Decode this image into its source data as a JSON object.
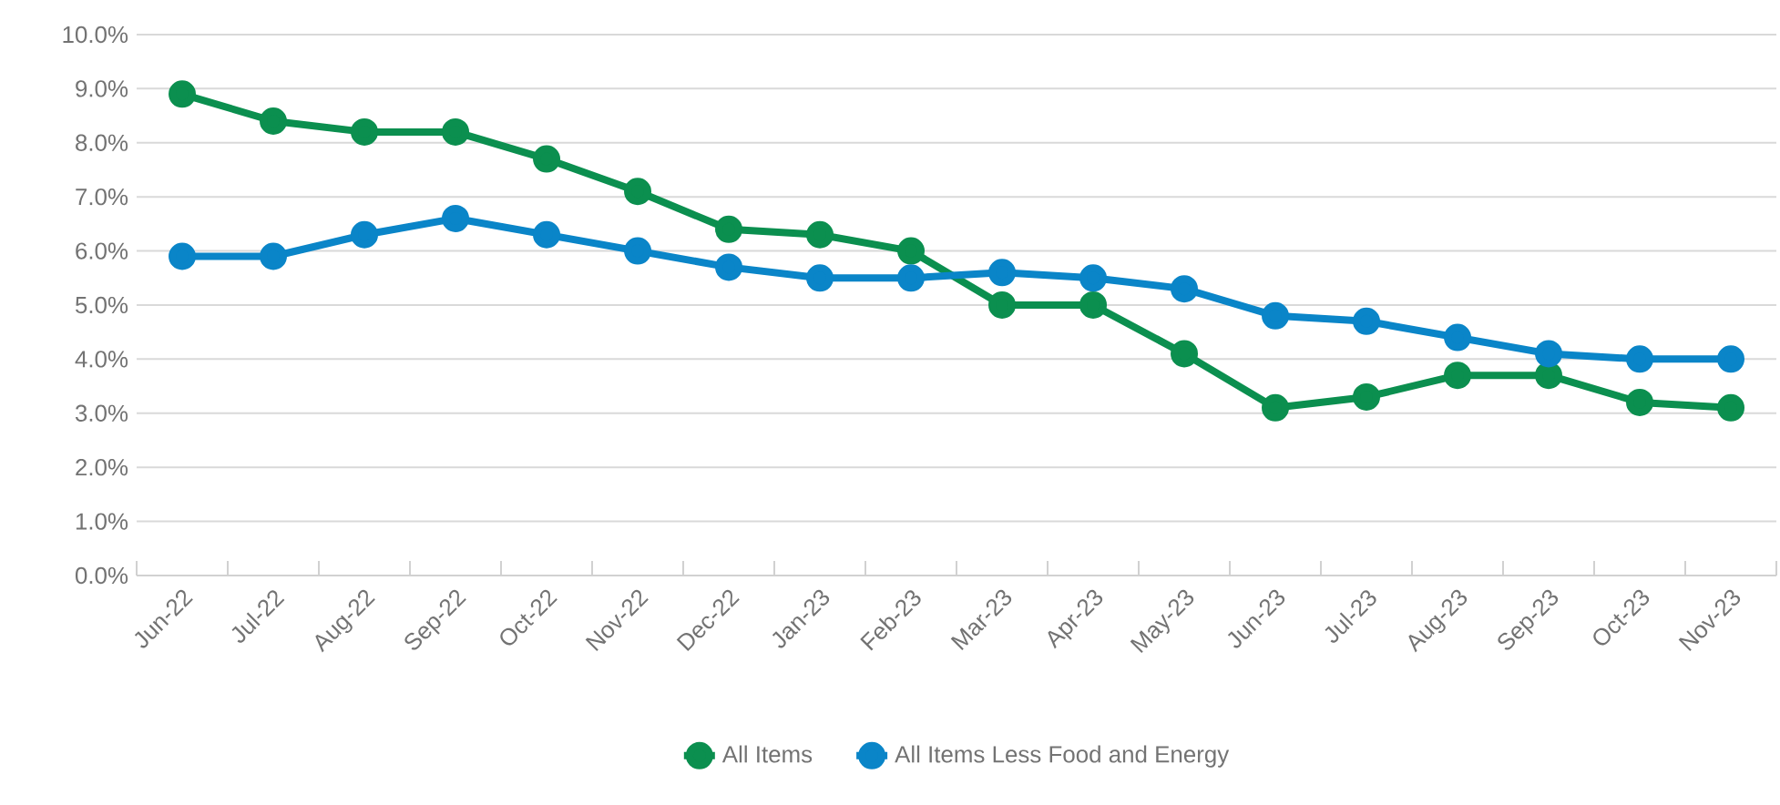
{
  "chart_data": {
    "type": "line",
    "categories": [
      "Jun-22",
      "Jul-22",
      "Aug-22",
      "Sep-22",
      "Oct-22",
      "Nov-22",
      "Dec-22",
      "Jan-23",
      "Feb-23",
      "Mar-23",
      "Apr-23",
      "May-23",
      "Jun-23",
      "Jul-23",
      "Aug-23",
      "Sep-23",
      "Oct-23",
      "Nov-23"
    ],
    "series": [
      {
        "name": "All Items",
        "color": "#0b8f4f",
        "values": [
          8.9,
          8.4,
          8.2,
          8.2,
          7.7,
          7.1,
          6.4,
          6.3,
          6.0,
          5.0,
          5.0,
          4.1,
          3.1,
          3.3,
          3.7,
          3.7,
          3.2,
          3.1
        ]
      },
      {
        "name": "All Items Less Food and Energy",
        "color": "#0a85c8",
        "values": [
          5.9,
          5.9,
          6.3,
          6.6,
          6.3,
          6.0,
          5.7,
          5.5,
          5.5,
          5.6,
          5.5,
          5.3,
          4.8,
          4.7,
          4.4,
          4.1,
          4.0,
          4.0
        ]
      }
    ],
    "ylim": [
      0,
      10
    ],
    "yticks": [
      {
        "value": 0,
        "label": "0.0%"
      },
      {
        "value": 1,
        "label": "1.0%"
      },
      {
        "value": 2,
        "label": "2.0%"
      },
      {
        "value": 3,
        "label": "3.0%"
      },
      {
        "value": 4,
        "label": "4.0%"
      },
      {
        "value": 5,
        "label": "5.0%"
      },
      {
        "value": 6,
        "label": "6.0%"
      },
      {
        "value": 7,
        "label": "7.0%"
      },
      {
        "value": 8,
        "label": "8.0%"
      },
      {
        "value": 9,
        "label": "9.0%"
      },
      {
        "value": 10,
        "label": "10.0%"
      }
    ],
    "grid": "y",
    "legend": "bottom",
    "marker": "circle",
    "line_style": "solid"
  }
}
